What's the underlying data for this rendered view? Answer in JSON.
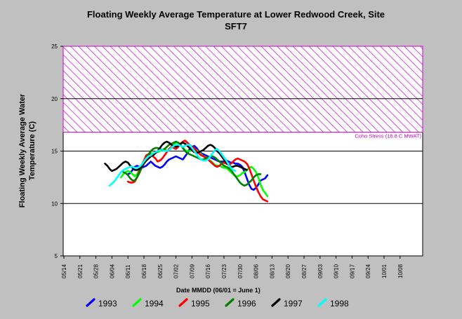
{
  "chart_data": {
    "type": "line",
    "title": "Floating Weekly Average Temperature at Lower Redwood Creek, Site",
    "title_line2": "SFT7",
    "xlabel": "Date MMDD (06/01 = June 1)",
    "ylabel_line1": "Floating Weekly Average Water",
    "ylabel_line2": "Temperature (C)",
    "x_tick_labels": [
      "05/14",
      "05/21",
      "05/28",
      "06/04",
      "06/11",
      "06/18",
      "06/25",
      "07/02",
      "07/09",
      "07/16",
      "07/23",
      "07/30",
      "08/06",
      "08/13",
      "08/20",
      "08/27",
      "09/03",
      "09/10",
      "09/17",
      "09/24",
      "10/01",
      "10/08"
    ],
    "ylim": [
      5,
      25
    ],
    "y_ticks": [
      5,
      10,
      15,
      20,
      25
    ],
    "grid": "horizontal at 10, 15, 20",
    "threshold": {
      "label": "Coho Stress (16.8 C MWAT)",
      "from": 16.8,
      "to": 25,
      "color": "#cc00cc"
    },
    "legend_position": "bottom",
    "series": [
      {
        "name": "1993",
        "color": "#0000ff",
        "start": "06/11",
        "values": [
          12.8,
          12.9,
          13.2,
          13.5,
          13.6,
          13.5,
          13.4,
          13.5,
          13.6,
          13.8,
          14.0,
          13.8,
          13.6,
          13.5,
          13.4,
          13.5,
          13.7,
          14.0,
          14.2,
          14.3,
          14.4,
          14.5,
          14.4,
          14.3,
          14.2,
          14.5,
          14.8,
          15.2,
          15.4,
          15.5,
          15.3,
          15.0,
          14.8,
          14.7,
          14.6,
          14.5,
          14.4,
          14.3,
          14.2,
          14.1,
          14.0,
          14.0,
          14.0,
          14.1,
          14.0,
          13.9,
          13.9,
          13.8,
          13.8,
          13.7,
          13.5,
          13.0,
          12.4,
          11.8,
          11.4,
          11.3,
          11.5,
          11.8,
          12.2,
          12.3,
          12.4,
          12.7
        ]
      },
      {
        "name": "1994",
        "color": "#00ff00",
        "start": "06/08",
        "values": [
          12.5,
          12.8,
          13.0,
          13.1,
          13.0,
          12.8,
          12.6,
          12.8,
          13.2,
          13.7,
          14.1,
          14.5,
          14.7,
          14.8,
          14.8,
          14.9,
          14.9,
          15.0,
          15.1,
          15.2,
          15.0,
          15.1,
          15.3,
          15.6,
          15.8,
          15.8,
          15.6,
          15.3,
          15.1,
          15.0,
          15.0,
          15.1,
          15.2,
          15.1,
          14.9,
          14.7,
          14.5,
          14.3,
          14.2,
          14.1,
          13.9,
          13.7,
          13.6,
          13.6,
          13.5,
          13.4,
          13.4,
          13.2,
          13.0,
          12.8,
          12.6,
          12.6,
          12.7,
          12.9,
          13.0,
          13.2,
          13.4,
          13.5,
          13.3,
          13.0,
          12.5,
          11.8,
          11.3,
          11.0,
          10.7
        ]
      },
      {
        "name": "1995",
        "color": "#ff0000",
        "start": "06/11",
        "values": [
          12.1,
          12.0,
          12.0,
          12.1,
          12.5,
          13.1,
          13.6,
          14.1,
          14.6,
          14.7,
          14.7,
          14.5,
          14.3,
          14.0,
          14.1,
          14.3,
          14.6,
          14.9,
          15.2,
          15.4,
          15.3,
          15.2,
          15.4,
          15.7,
          15.9,
          16.0,
          15.8,
          15.6,
          15.4,
          15.3,
          15.0,
          14.8,
          14.6,
          14.5,
          14.4,
          14.2,
          14.0,
          13.8,
          13.6,
          13.5,
          13.6,
          13.8,
          13.9,
          13.8,
          13.7,
          13.8,
          14.0,
          14.2,
          14.3,
          14.2,
          14.1,
          14.0,
          13.8,
          13.4,
          12.8,
          12.2,
          11.6,
          11.1,
          10.7,
          10.4,
          10.3,
          10.2
        ]
      },
      {
        "name": "1996",
        "color": "#008000",
        "start": "06/09",
        "values": [
          13.0,
          12.9,
          12.7,
          12.4,
          12.2,
          12.2,
          12.5,
          12.9,
          13.4,
          13.9,
          14.3,
          14.7,
          15.0,
          15.2,
          15.3,
          15.3,
          15.2,
          15.1,
          15.2,
          15.4,
          15.6,
          15.7,
          15.8,
          15.9,
          15.8,
          15.6,
          15.3,
          15.0,
          14.8,
          14.7,
          14.6,
          14.5,
          14.4,
          14.3,
          14.2,
          14.2,
          14.3,
          14.4,
          14.5,
          14.5,
          14.4,
          14.2,
          14.0,
          13.8,
          13.6,
          13.5,
          13.4,
          13.2,
          12.9,
          12.6,
          12.3,
          12.0,
          11.8,
          11.7,
          11.8,
          12.0,
          12.2,
          12.5,
          12.7,
          12.8,
          12.8
        ]
      },
      {
        "name": "1997",
        "color": "#000000",
        "start": "06/01",
        "values": [
          13.8,
          13.6,
          13.3,
          13.1,
          13.2,
          13.3,
          13.5,
          13.7,
          13.9,
          14.0,
          13.9,
          13.6,
          13.4,
          13.2,
          13.2,
          13.3,
          13.5,
          13.8,
          14.1,
          14.3,
          14.5,
          14.6,
          14.8,
          15.0,
          15.3,
          15.6,
          15.8,
          15.9,
          15.8,
          15.6,
          15.5,
          15.4,
          15.5,
          15.7,
          15.8,
          15.7,
          15.5,
          15.3,
          15.1,
          14.9,
          14.8,
          14.9,
          15.0,
          15.1,
          15.3,
          15.5,
          15.6,
          15.5,
          15.3,
          15.0,
          14.8,
          14.5,
          14.2,
          13.9,
          13.7,
          13.5,
          13.5,
          13.6,
          13.6,
          13.5,
          13.4,
          13.3,
          13.2
        ]
      },
      {
        "name": "1998",
        "color": "#00ffff",
        "start": "06/03",
        "values": [
          11.7,
          11.9,
          12.1,
          12.4,
          12.7,
          13.0,
          13.2,
          13.3,
          13.4,
          13.5,
          13.5,
          13.4,
          13.4,
          13.5,
          13.7,
          14.0,
          14.3,
          14.5,
          14.6,
          14.8,
          14.9,
          15.0,
          15.1,
          15.1,
          15.0,
          15.0,
          15.1,
          15.3,
          15.5,
          15.6,
          15.6,
          15.5,
          15.4,
          15.5,
          15.6,
          15.6,
          15.3,
          15.0,
          14.7,
          14.4,
          14.2,
          14.1,
          14.1,
          14.2,
          14.5,
          14.8,
          15.1,
          15.2,
          15.0,
          14.7,
          14.4,
          14.1,
          13.7,
          13.4,
          13.2,
          13.1
        ]
      }
    ]
  }
}
